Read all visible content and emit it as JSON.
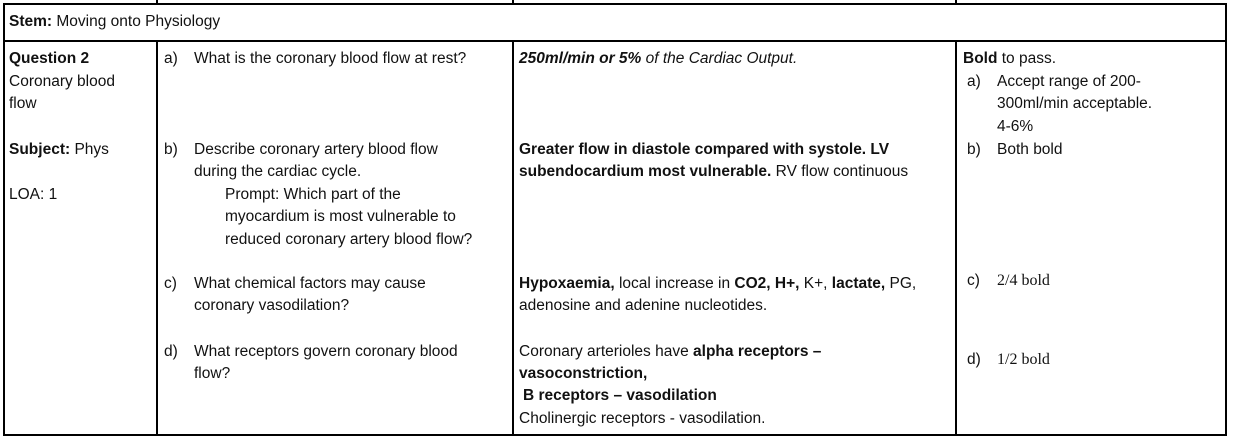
{
  "stem": {
    "label": "Stem:",
    "text": "Moving onto Physiology"
  },
  "meta": {
    "question_label": "Question 2",
    "topic_line1": "Coronary blood",
    "topic_line2": "flow",
    "subject_label": "Subject:",
    "subject_value": "Phys",
    "loa": "LOA: 1"
  },
  "questions": {
    "a": {
      "letter": "a)",
      "line1": "What is the coronary blood flow at rest?"
    },
    "b": {
      "letter": "b)",
      "line1": "Describe coronary artery blood flow",
      "line2": "during the cardiac cycle.",
      "prompt1": "Prompt: Which part of the",
      "prompt2": "myocardium is most vulnerable to",
      "prompt3": "reduced coronary artery blood flow?"
    },
    "c": {
      "letter": "c)",
      "line1": "What chemical factors may cause",
      "line2": "coronary vasodilation?"
    },
    "d": {
      "letter": "d)",
      "line1": "What receptors govern coronary blood",
      "line2": "flow?"
    }
  },
  "answers": {
    "a": {
      "bold": "250ml/min or 5%",
      "rest": " of the Cardiac Output."
    },
    "b": {
      "bold1": "Greater flow in diastole compared with systole. LV",
      "bold2": "subendocardium most vulnerable.",
      "rest2": " RV flow continuous"
    },
    "c": {
      "b1": "Hypoxaemia,",
      "t1": " local increase in ",
      "b2": "CO2, H+,",
      "t2": " K+, ",
      "b3": "lactate,",
      "t3": " PG,",
      "line2": "adenosine and adenine nucleotides."
    },
    "d": {
      "t1": "Coronary arterioles have ",
      "b1": "alpha receptors –",
      "b2": "vasoconstriction,",
      "t2": ",",
      "b3": "B receptors – vasodilation",
      "line4": "Cholinergic receptors - vasodilation."
    }
  },
  "marking": {
    "bold_word": "Bold",
    "pass_text": " to pass.",
    "a_letter": "a)",
    "a_line1": "Accept range of 200-",
    "a_line2": "300ml/min acceptable.",
    "a_line3": "4-6%",
    "b_letter": "b)",
    "b_text": "Both bold",
    "c_letter": "c)",
    "c_text": "2/4 bold",
    "d_letter": "d)",
    "d_text": "1/2 bold"
  }
}
